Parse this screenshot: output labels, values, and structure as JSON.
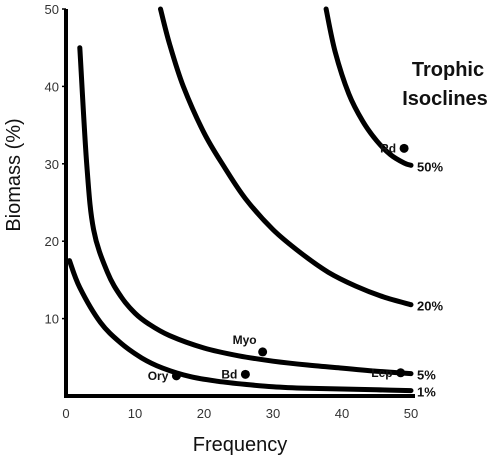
{
  "chart_data": {
    "type": "line",
    "title_lines": [
      "Trophic",
      "Isoclines"
    ],
    "xlabel": "Frequency",
    "ylabel": "Biomass (%)",
    "xlim": [
      0,
      50
    ],
    "ylim": [
      0,
      50
    ],
    "x_ticks": [
      0,
      10,
      20,
      30,
      40,
      50
    ],
    "y_ticks": [
      10,
      20,
      30,
      40,
      50
    ],
    "x_tick_labels": [
      "0",
      "10",
      "20",
      "30",
      "40",
      "50"
    ],
    "y_tick_labels": [
      "10",
      "20",
      "30",
      "40",
      "50"
    ],
    "grid": false,
    "series": [
      {
        "name": "1%",
        "x": [
          0.5,
          2,
          5,
          8,
          11,
          14,
          18,
          22,
          26,
          30,
          35,
          40,
          45,
          50
        ],
        "y": [
          17.5,
          14,
          9.5,
          6.8,
          4.9,
          3.6,
          2.5,
          1.9,
          1.5,
          1.2,
          1.0,
          0.9,
          0.8,
          0.7
        ]
      },
      {
        "name": "5%",
        "x": [
          2,
          3,
          4,
          6,
          8,
          10,
          12,
          15,
          20,
          25,
          30,
          35,
          40,
          45,
          50
        ],
        "y": [
          45,
          30,
          21.5,
          16,
          12.8,
          10.7,
          9.3,
          7.8,
          6.2,
          5.2,
          4.5,
          4.0,
          3.6,
          3.2,
          2.9
        ]
      },
      {
        "name": "20%",
        "x": [
          13.7,
          15,
          17,
          20,
          23,
          26,
          30,
          34,
          38,
          42,
          46,
          50
        ],
        "y": [
          50,
          45.5,
          40,
          34,
          29.5,
          25.5,
          21.5,
          18.5,
          16,
          14.2,
          12.8,
          11.8
        ]
      },
      {
        "name": "50%",
        "x": [
          37.7,
          39,
          41,
          43,
          45,
          47,
          49,
          50
        ],
        "y": [
          50,
          44.5,
          39,
          35.5,
          33,
          31.2,
          30.1,
          29.8
        ]
      }
    ],
    "points": [
      {
        "label": "Rd",
        "x": 49,
        "y": 32
      },
      {
        "label": "Myo",
        "x": 28.5,
        "y": 5.7
      },
      {
        "label": "Lep",
        "x": 48.5,
        "y": 3.0
      },
      {
        "label": "Bd",
        "x": 26,
        "y": 2.8
      },
      {
        "label": "Ory",
        "x": 16,
        "y": 2.6
      }
    ],
    "colors": {
      "line": "#000000",
      "axis": "#000000"
    }
  }
}
